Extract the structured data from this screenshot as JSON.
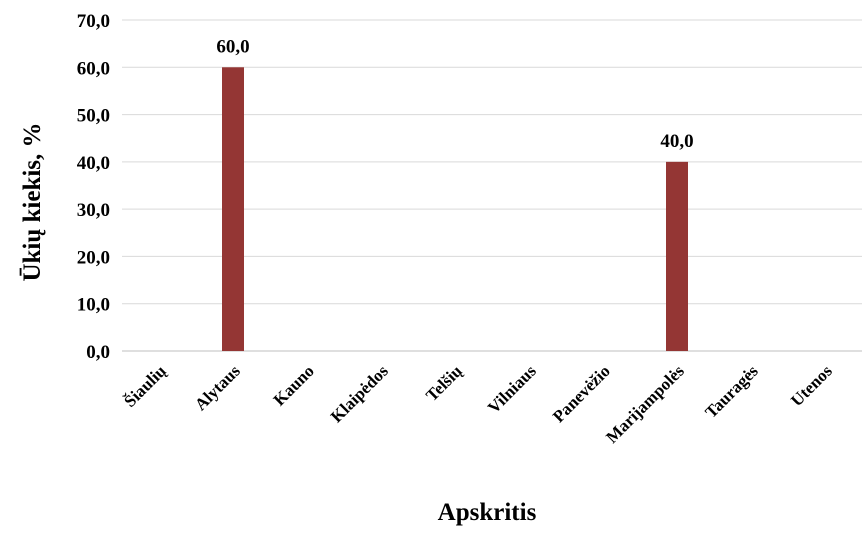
{
  "chart_data": {
    "type": "bar",
    "categories": [
      "Šiaulių",
      "Alytaus",
      "Kauno",
      "Klaipėdos",
      "Telšių",
      "Vilniaus",
      "Panevėžio",
      "Marijampolės",
      "Tauragės",
      "Utenos"
    ],
    "values": [
      0,
      60,
      0,
      0,
      0,
      0,
      0,
      40,
      0,
      0
    ],
    "data_labels": [
      "",
      "60,0",
      "",
      "",
      "",
      "",
      "",
      "40,0",
      "",
      ""
    ],
    "yticks": [
      "0,0",
      "10,0",
      "20,0",
      "30,0",
      "40,0",
      "50,0",
      "60,0",
      "70,0"
    ],
    "ylim": [
      0,
      70
    ],
    "title": "",
    "xlabel": "Apskritis",
    "ylabel": "Ūkių kiekis, %",
    "grid": true,
    "bar_color": "#943634",
    "grid_color": "#d9d9d9"
  }
}
